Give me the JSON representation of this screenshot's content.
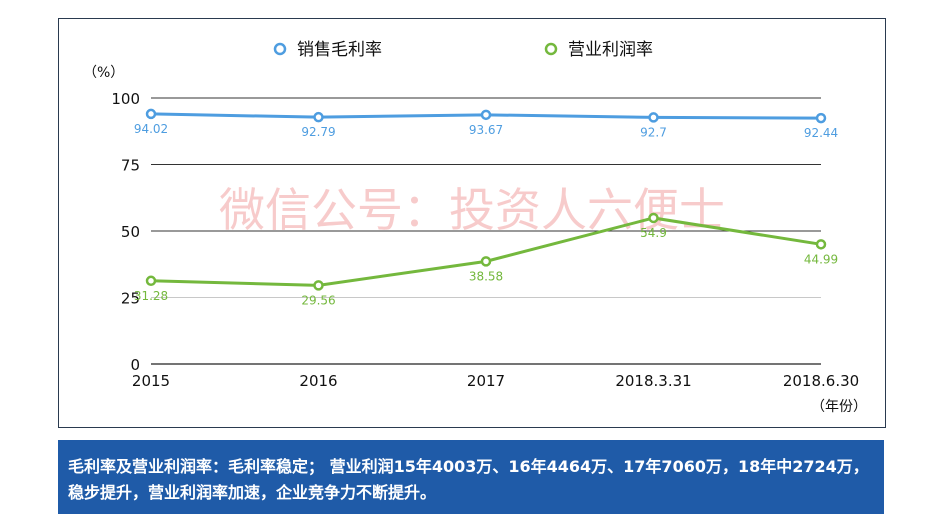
{
  "chart_data": {
    "type": "line",
    "categories": [
      "2015",
      "2016",
      "2017",
      "2018.3.31",
      "2018.6.30"
    ],
    "series": [
      {
        "name": "销售毛利率",
        "values": [
          94.02,
          92.79,
          93.67,
          92.7,
          92.44
        ],
        "labels": [
          "94.02",
          "92.79",
          "93.67",
          "92.7",
          "92.44"
        ],
        "color": "#4e9de0"
      },
      {
        "name": "营业利润率",
        "values": [
          31.28,
          29.56,
          38.58,
          54.9,
          44.99
        ],
        "labels": [
          "31.28",
          "29.56",
          "38.58",
          "54.9",
          "44.99"
        ],
        "color": "#74b83d"
      }
    ],
    "yunit": "（%）",
    "xunit": "（年份）",
    "ylim": [
      0,
      100
    ],
    "yticks": [
      0,
      25,
      50,
      75,
      100
    ],
    "grid": true,
    "legend": "top-center"
  },
  "watermark": "微信公号：投资人六便士",
  "caption": "毛利率及营业利润率：毛利率稳定； 营业利润15年4003万、16年4464万、17年7060万，18年中2724万，稳步提升，营业利润率加速，企业竞争力不断提升。"
}
